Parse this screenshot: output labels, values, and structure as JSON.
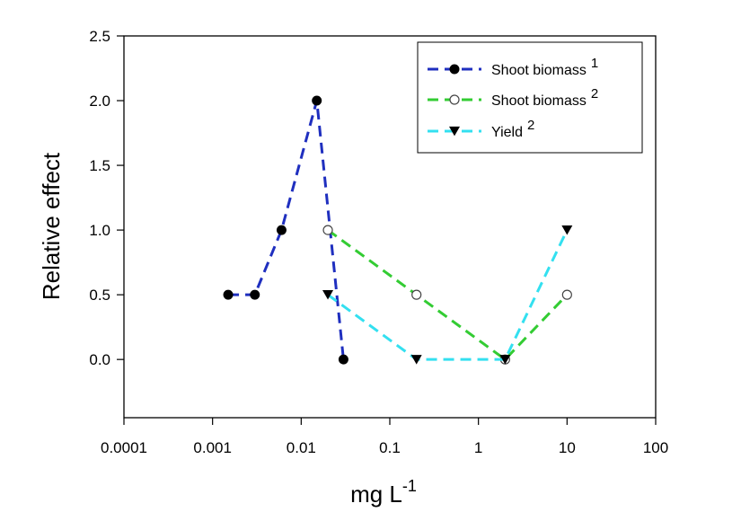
{
  "chart_data": {
    "type": "line",
    "xscale": "log",
    "xlim": [
      0.0001,
      100
    ],
    "ylim": [
      -0.45,
      2.5
    ],
    "xticks": [
      0.0001,
      0.001,
      0.01,
      0.1,
      1,
      10,
      100
    ],
    "xtick_labels": [
      "0.0001",
      "0.001",
      "0.01",
      "0.1",
      "1",
      "10",
      "100"
    ],
    "yticks": [
      0.0,
      0.5,
      1.0,
      1.5,
      2.0,
      2.5
    ],
    "ytick_labels": [
      "0.0",
      "0.5",
      "1.0",
      "1.5",
      "2.0",
      "2.5"
    ],
    "xlabel": "mg L",
    "xlabel_sup": "-1",
    "ylabel": "Relative effect",
    "legend_position": "top-right",
    "series": [
      {
        "name": "Shoot biomass",
        "sup": "1",
        "color": "#1f2fbf",
        "marker": "filled-circle",
        "x": [
          0.0015,
          0.003,
          0.006,
          0.015,
          0.03
        ],
        "y": [
          0.5,
          0.5,
          1.0,
          2.0,
          0.0
        ]
      },
      {
        "name": "Shoot biomass",
        "sup": "2",
        "color": "#33cc33",
        "marker": "open-circle",
        "x": [
          0.02,
          0.2,
          2,
          10
        ],
        "y": [
          1.0,
          0.5,
          0.0,
          0.5
        ]
      },
      {
        "name": "Yield",
        "sup": "2",
        "color": "#33e0f0",
        "marker": "filled-triangle-down",
        "x": [
          0.02,
          0.2,
          2,
          10
        ],
        "y": [
          0.5,
          0.0,
          0.0,
          1.0
        ]
      }
    ]
  }
}
